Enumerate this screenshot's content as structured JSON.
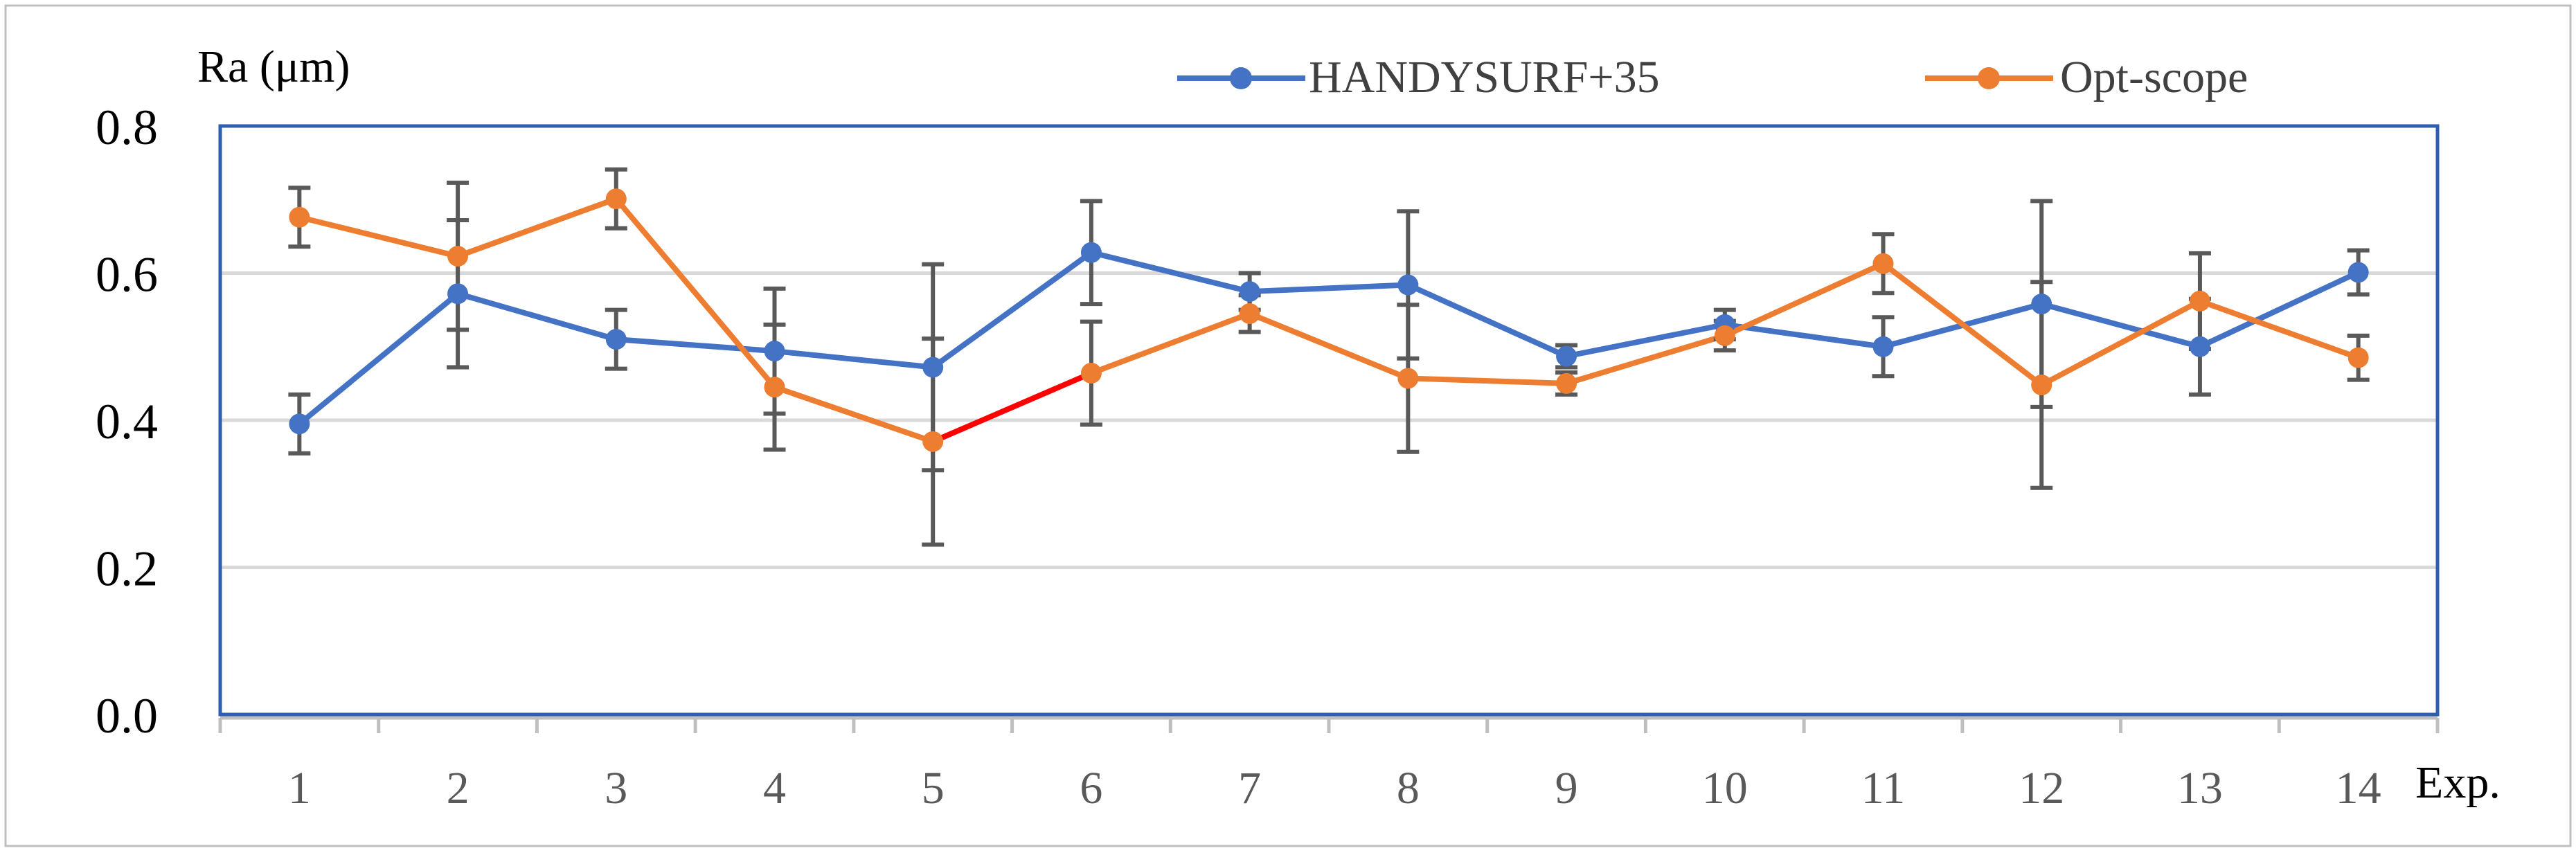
{
  "chart_data": {
    "type": "line",
    "title": "",
    "ylabel": "Ra (μm)",
    "xlabel": "Exp.",
    "ylim": [
      0,
      0.8
    ],
    "yticks": [
      0.0,
      0.2,
      0.4,
      0.6,
      0.8
    ],
    "ytick_labels": [
      "0.0",
      "0.2",
      "0.4",
      "0.6",
      "0.8"
    ],
    "categories": [
      "1",
      "2",
      "3",
      "4",
      "5",
      "6",
      "7",
      "8",
      "9",
      "10",
      "11",
      "12",
      "13",
      "14"
    ],
    "grid": true,
    "legend_position": "top",
    "series": [
      {
        "name": "HANDYSURF+35",
        "color": "#4472C4",
        "values": [
          0.395,
          0.572,
          0.51,
          0.494,
          0.472,
          0.628,
          0.575,
          0.584,
          0.487,
          0.53,
          0.5,
          0.558,
          0.5,
          0.601
        ],
        "errors": [
          0.04,
          0.1,
          0.04,
          0.085,
          0.14,
          0.07,
          0.025,
          0.1,
          0.015,
          0.02,
          0.04,
          0.14,
          0.065,
          0.03
        ]
      },
      {
        "name": "Opt-scope",
        "color": "#ED7D31",
        "values": [
          0.676,
          0.623,
          0.701,
          0.445,
          0.371,
          0.464,
          0.545,
          0.457,
          0.45,
          0.515,
          0.613,
          0.448,
          0.562,
          0.485
        ],
        "errors": [
          0.04,
          0.1,
          0.04,
          0.085,
          0.14,
          0.07,
          0.025,
          0.1,
          0.015,
          0.02,
          0.04,
          0.14,
          0.065,
          0.03
        ],
        "highlight_segment": {
          "from": "5",
          "to": "6",
          "color": "#FF0000"
        }
      }
    ],
    "errorbar_color": "#595959",
    "plot_border_color": "#2F5FB3",
    "gridline_color": "#D9D9D9"
  }
}
